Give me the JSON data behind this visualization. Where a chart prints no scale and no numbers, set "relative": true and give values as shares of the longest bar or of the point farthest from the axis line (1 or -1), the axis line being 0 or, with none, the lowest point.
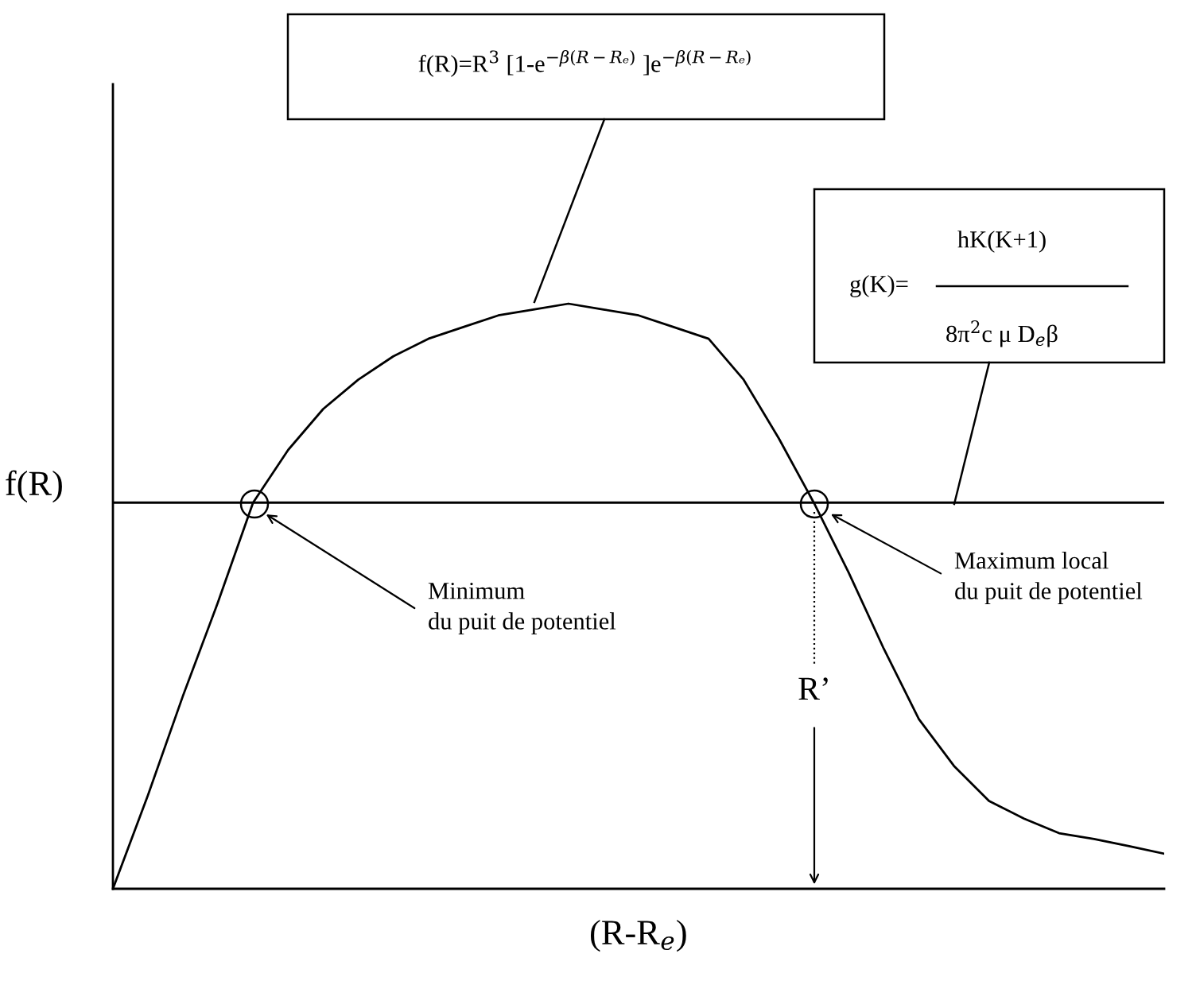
{
  "chart_data": {
    "type": "line",
    "relative": true,
    "xlabel": "(R-R$_{e}$)",
    "ylabel": "f(R)",
    "categories": [
      null,
      null,
      null,
      null,
      null,
      null,
      null,
      null,
      null,
      null,
      null,
      null,
      null,
      null,
      null,
      null,
      null,
      null,
      null,
      null,
      null,
      null,
      null,
      null,
      null,
      null,
      null,
      null,
      null,
      null,
      null
    ],
    "series": [
      {
        "color": "#000000",
        "values": [
          0,
          0.16,
          0.33,
          0.49,
          0.66,
          0.75,
          0.82,
          0.87,
          0.91,
          0.94,
          0.96,
          0.98,
          0.99,
          1,
          0.99,
          0.98,
          0.96,
          0.94,
          0.87,
          0.77,
          0.66,
          0.54,
          0.41,
          0.29,
          0.21,
          0.15,
          0.12,
          0.095,
          0.085,
          0.073,
          0.06
        ]
      }
    ],
    "ref_lines": [
      {
        "axis": "y",
        "value": 0.66,
        "color": "#000000",
        "line_style": "solid"
      }
    ],
    "annotations": [
      "f(R)=R$^{3}$ [1-e$^{−β(R−Rₑ)}$ ]e$^{−β(R−Rₑ)}$",
      "g(K)=",
      "hK(K+1)",
      "8π$^{2}$c μ D$_{e}$β",
      "Minimum\ndu puit de potentiel",
      "Maximum local\ndu puit de potentiel",
      "R’"
    ]
  }
}
